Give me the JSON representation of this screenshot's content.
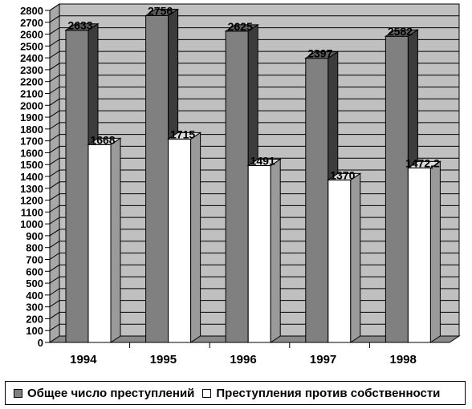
{
  "chart_data": {
    "type": "bar",
    "style": "3d-clustered-column",
    "categories": [
      "1994",
      "1995",
      "1996",
      "1997",
      "1998"
    ],
    "series": [
      {
        "name": "Общее число преступлений",
        "values": [
          2633,
          2756,
          2625,
          2397,
          2582
        ],
        "labels": [
          "2633",
          "2756",
          "2625",
          "2397",
          "2582"
        ],
        "color": "#808080"
      },
      {
        "name": "Преступления против собственности",
        "values": [
          1668,
          1715,
          1491,
          1370,
          1472.2
        ],
        "labels": [
          "1668",
          "1715",
          "1491",
          "1370",
          "1472,2"
        ],
        "color": "#ffffff"
      }
    ],
    "ylim": [
      0,
      2800
    ],
    "ytick_step": 100,
    "grid": true,
    "wall_color": "#c0c0c0",
    "legend": "bottom"
  }
}
